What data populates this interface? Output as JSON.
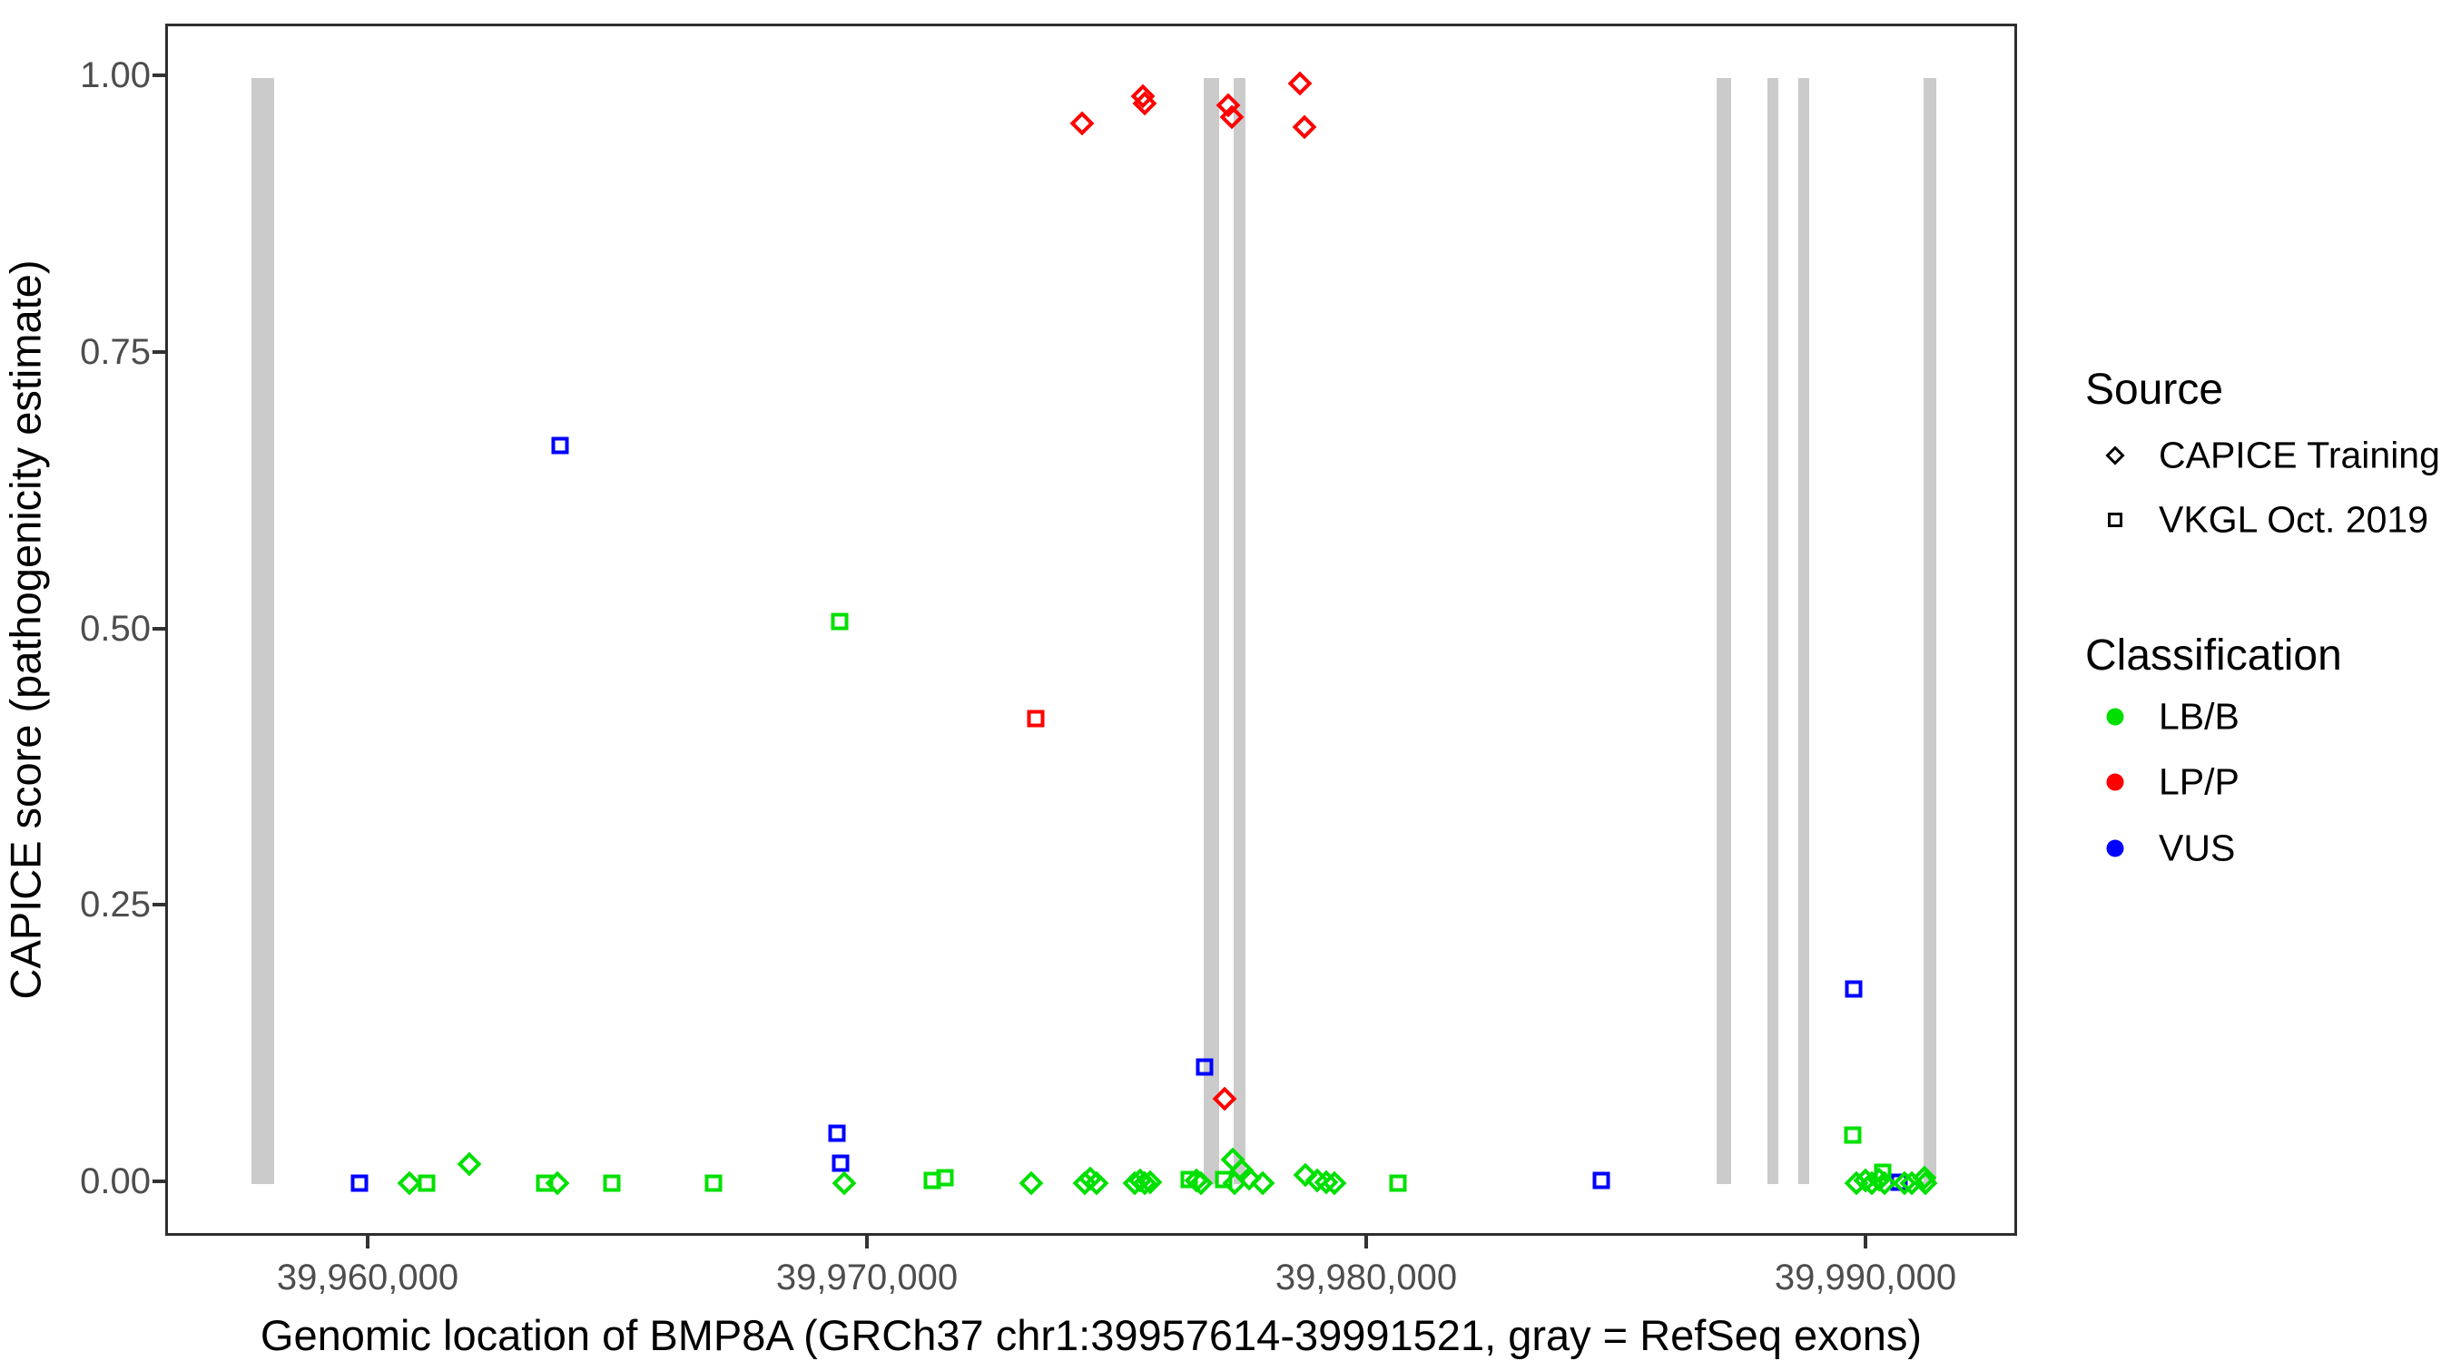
{
  "figure": {
    "y_axis": {
      "title": "CAPICE score (pathogenicity estimate)",
      "tick_labels": [
        "1.00",
        "0.75",
        "0.50",
        "0.25",
        "0.00"
      ],
      "tick_values": [
        1.0,
        0.75,
        0.5,
        0.25,
        0.0
      ]
    },
    "x_axis": {
      "title": "Genomic location of BMP8A (GRCh37 chr1:39957614-39991521, gray = RefSeq exons)",
      "tick_labels": [
        "39,960,000",
        "39,970,000",
        "39,980,000",
        "39,990,000"
      ],
      "tick_values": [
        39960000,
        39970000,
        39980000,
        39990000
      ]
    },
    "legend": {
      "source": {
        "title": "Source",
        "items": [
          {
            "label": "CAPICE Training",
            "shape": "diamond"
          },
          {
            "label": "VKGL Oct. 2019",
            "shape": "square"
          }
        ]
      },
      "classification": {
        "title": "Classification",
        "items": [
          {
            "label": "LB/B",
            "color": "#00E000"
          },
          {
            "label": "LP/P",
            "color": "#FF0000"
          },
          {
            "label": "VUS",
            "color": "#0000FF"
          }
        ]
      }
    },
    "colors": {
      "LB/B": "#00E000",
      "LP/P": "#FF0000",
      "VUS": "#0000FF",
      "exon": "#CBCBCB",
      "axis": "#333333",
      "tick_text": "#4D4D4D"
    }
  },
  "chart_data": {
    "type": "scatter",
    "title": "",
    "xlabel": "Genomic location of BMP8A (GRCh37 chr1:39957614-39991521, gray = RefSeq exons)",
    "ylabel": "CAPICE score (pathogenicity estimate)",
    "xlim": [
      39955945,
      39993036
    ],
    "ylim": [
      -0.043,
      1.053
    ],
    "grid": false,
    "legend_position": "right",
    "shape_by_source": {
      "CAPICE Training": "diamond",
      "VKGL Oct. 2019": "square"
    },
    "color_by_class": {
      "LB/B": "#00E000",
      "LP/P": "#FF0000",
      "VUS": "#0000FF"
    },
    "refseq_exons_bp": [
      [
        39957614,
        39958070
      ],
      [
        39976690,
        39977000
      ],
      [
        39977290,
        39977530
      ],
      [
        39986960,
        39987250
      ],
      [
        39987980,
        39988200
      ],
      [
        39988600,
        39988820
      ],
      [
        39991110,
        39991370
      ]
    ],
    "points": [
      {
        "bp": 39974250,
        "score": 0.959,
        "source": "CAPICE Training",
        "class": "LP/P"
      },
      {
        "bp": 39975470,
        "score": 0.984,
        "source": "CAPICE Training",
        "class": "LP/P"
      },
      {
        "bp": 39975510,
        "score": 0.977,
        "source": "CAPICE Training",
        "class": "LP/P"
      },
      {
        "bp": 39977180,
        "score": 0.975,
        "source": "CAPICE Training",
        "class": "LP/P"
      },
      {
        "bp": 39977260,
        "score": 0.965,
        "source": "CAPICE Training",
        "class": "LP/P"
      },
      {
        "bp": 39978620,
        "score": 0.995,
        "source": "CAPICE Training",
        "class": "LP/P"
      },
      {
        "bp": 39978710,
        "score": 0.956,
        "source": "CAPICE Training",
        "class": "LP/P"
      },
      {
        "bp": 39977100,
        "score": 0.077,
        "source": "CAPICE Training",
        "class": "LP/P"
      },
      {
        "bp": 39973330,
        "score": 0.421,
        "source": "VKGL Oct. 2019",
        "class": "LP/P"
      },
      {
        "bp": 39959780,
        "score": 0.001,
        "source": "VKGL Oct. 2019",
        "class": "VUS"
      },
      {
        "bp": 39963800,
        "score": 0.668,
        "source": "VKGL Oct. 2019",
        "class": "VUS"
      },
      {
        "bp": 39969350,
        "score": 0.046,
        "source": "VKGL Oct. 2019",
        "class": "VUS"
      },
      {
        "bp": 39969420,
        "score": 0.019,
        "source": "VKGL Oct. 2019",
        "class": "VUS"
      },
      {
        "bp": 39976710,
        "score": 0.106,
        "source": "VKGL Oct. 2019",
        "class": "VUS"
      },
      {
        "bp": 39984660,
        "score": 0.003,
        "source": "VKGL Oct. 2019",
        "class": "VUS"
      },
      {
        "bp": 39989700,
        "score": 0.176,
        "source": "VKGL Oct. 2019",
        "class": "VUS"
      },
      {
        "bp": 39990620,
        "score": 0.002,
        "source": "VKGL Oct. 2019",
        "class": "VUS"
      },
      {
        "bp": 39961130,
        "score": 0.001,
        "source": "VKGL Oct. 2019",
        "class": "LB/B"
      },
      {
        "bp": 39963490,
        "score": 0.001,
        "source": "VKGL Oct. 2019",
        "class": "LB/B"
      },
      {
        "bp": 39964840,
        "score": 0.001,
        "source": "VKGL Oct. 2019",
        "class": "LB/B"
      },
      {
        "bp": 39966870,
        "score": 0.001,
        "source": "VKGL Oct. 2019",
        "class": "LB/B"
      },
      {
        "bp": 39969400,
        "score": 0.509,
        "source": "VKGL Oct. 2019",
        "class": "LB/B"
      },
      {
        "bp": 39971260,
        "score": 0.003,
        "source": "VKGL Oct. 2019",
        "class": "LB/B"
      },
      {
        "bp": 39971500,
        "score": 0.006,
        "source": "VKGL Oct. 2019",
        "class": "LB/B"
      },
      {
        "bp": 39976400,
        "score": 0.004,
        "source": "VKGL Oct. 2019",
        "class": "LB/B"
      },
      {
        "bp": 39977090,
        "score": 0.004,
        "source": "VKGL Oct. 2019",
        "class": "LB/B"
      },
      {
        "bp": 39980580,
        "score": 0.001,
        "source": "VKGL Oct. 2019",
        "class": "LB/B"
      },
      {
        "bp": 39989690,
        "score": 0.044,
        "source": "VKGL Oct. 2019",
        "class": "LB/B"
      },
      {
        "bp": 39990290,
        "score": 0.011,
        "source": "VKGL Oct. 2019",
        "class": "LB/B"
      },
      {
        "bp": 39960780,
        "score": 0.001,
        "source": "CAPICE Training",
        "class": "LB/B"
      },
      {
        "bp": 39961990,
        "score": 0.018,
        "source": "CAPICE Training",
        "class": "LB/B"
      },
      {
        "bp": 39963750,
        "score": 0.001,
        "source": "CAPICE Training",
        "class": "LB/B"
      },
      {
        "bp": 39969490,
        "score": 0.001,
        "source": "CAPICE Training",
        "class": "LB/B"
      },
      {
        "bp": 39973240,
        "score": 0.001,
        "source": "CAPICE Training",
        "class": "LB/B"
      },
      {
        "bp": 39974310,
        "score": 0.001,
        "source": "CAPICE Training",
        "class": "LB/B"
      },
      {
        "bp": 39974420,
        "score": 0.005,
        "source": "CAPICE Training",
        "class": "LB/B"
      },
      {
        "bp": 39974550,
        "score": 0.001,
        "source": "CAPICE Training",
        "class": "LB/B"
      },
      {
        "bp": 39975310,
        "score": 0.001,
        "source": "CAPICE Training",
        "class": "LB/B"
      },
      {
        "bp": 39975420,
        "score": 0.003,
        "source": "CAPICE Training",
        "class": "LB/B"
      },
      {
        "bp": 39975510,
        "score": 0.001,
        "source": "CAPICE Training",
        "class": "LB/B"
      },
      {
        "bp": 39975620,
        "score": 0.002,
        "source": "CAPICE Training",
        "class": "LB/B"
      },
      {
        "bp": 39976550,
        "score": 0.003,
        "source": "CAPICE Training",
        "class": "LB/B"
      },
      {
        "bp": 39976640,
        "score": 0.001,
        "source": "CAPICE Training",
        "class": "LB/B"
      },
      {
        "bp": 39977270,
        "score": 0.022,
        "source": "CAPICE Training",
        "class": "LB/B"
      },
      {
        "bp": 39977310,
        "score": 0.001,
        "source": "CAPICE Training",
        "class": "LB/B"
      },
      {
        "bp": 39977460,
        "score": 0.012,
        "source": "CAPICE Training",
        "class": "LB/B"
      },
      {
        "bp": 39977600,
        "score": 0.005,
        "source": "CAPICE Training",
        "class": "LB/B"
      },
      {
        "bp": 39977870,
        "score": 0.001,
        "source": "CAPICE Training",
        "class": "LB/B"
      },
      {
        "bp": 39978730,
        "score": 0.008,
        "source": "CAPICE Training",
        "class": "LB/B"
      },
      {
        "bp": 39978960,
        "score": 0.003,
        "source": "CAPICE Training",
        "class": "LB/B"
      },
      {
        "bp": 39979150,
        "score": 0.002,
        "source": "CAPICE Training",
        "class": "LB/B"
      },
      {
        "bp": 39979310,
        "score": 0.001,
        "source": "CAPICE Training",
        "class": "LB/B"
      },
      {
        "bp": 39989760,
        "score": 0.001,
        "source": "CAPICE Training",
        "class": "LB/B"
      },
      {
        "bp": 39989950,
        "score": 0.003,
        "source": "CAPICE Training",
        "class": "LB/B"
      },
      {
        "bp": 39990070,
        "score": 0.001,
        "source": "CAPICE Training",
        "class": "LB/B"
      },
      {
        "bp": 39990220,
        "score": 0.004,
        "source": "CAPICE Training",
        "class": "LB/B"
      },
      {
        "bp": 39990330,
        "score": 0.001,
        "source": "CAPICE Training",
        "class": "LB/B"
      },
      {
        "bp": 39990730,
        "score": 0.001,
        "source": "CAPICE Training",
        "class": "LB/B"
      },
      {
        "bp": 39990870,
        "score": 0.001,
        "source": "CAPICE Training",
        "class": "LB/B"
      },
      {
        "bp": 39991130,
        "score": 0.006,
        "source": "CAPICE Training",
        "class": "LB/B"
      },
      {
        "bp": 39991150,
        "score": 0.001,
        "source": "CAPICE Training",
        "class": "LB/B"
      }
    ]
  }
}
